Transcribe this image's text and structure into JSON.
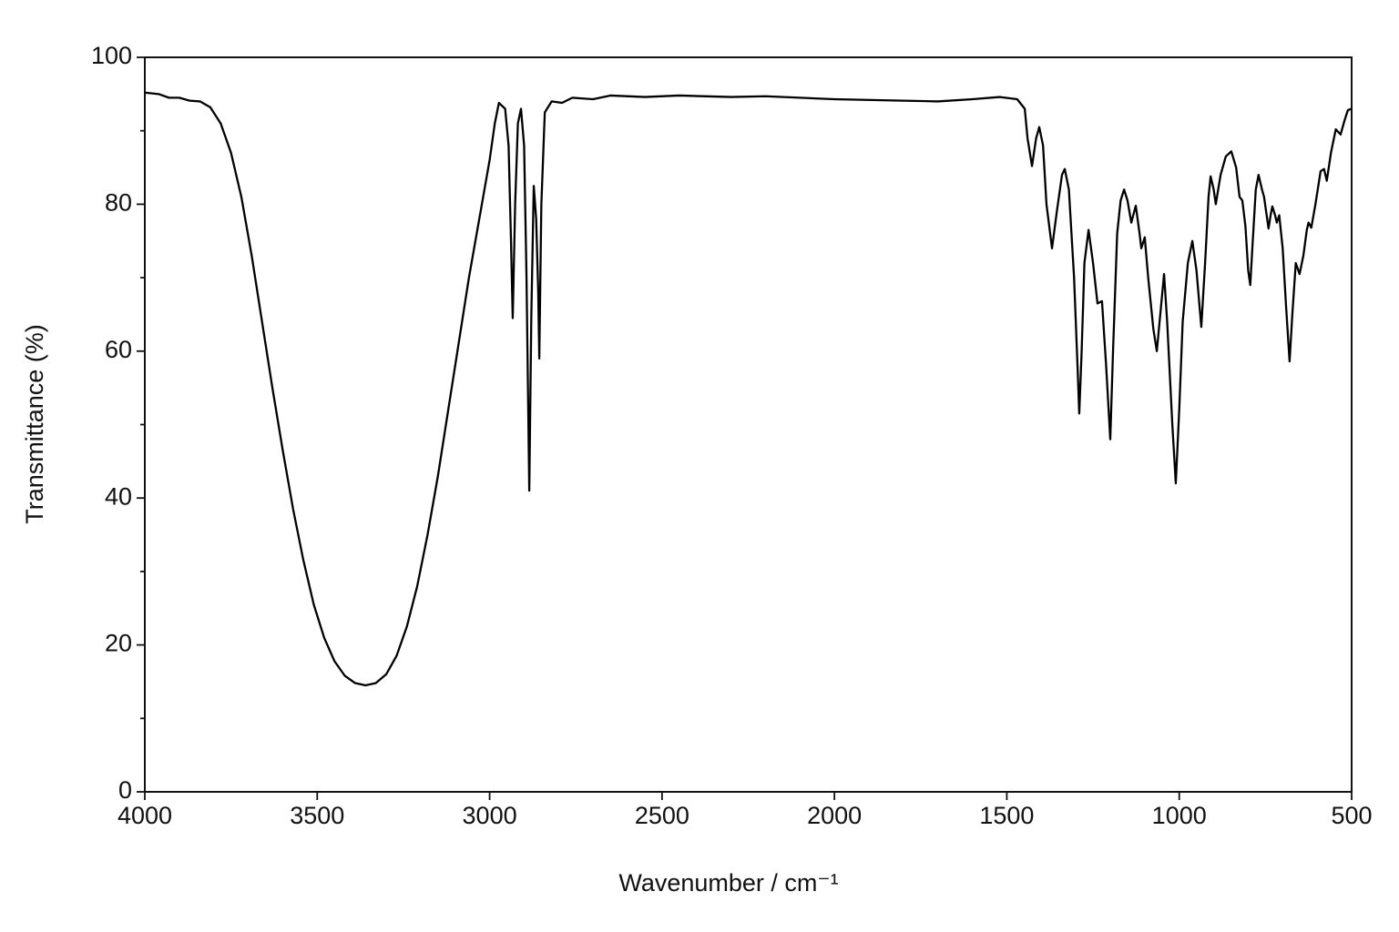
{
  "chart_data": {
    "type": "line",
    "x_label": "Wavenumber / cm⁻¹",
    "y_label": "Transmittance (%)",
    "color": "#000000",
    "xlim": [
      4000,
      500
    ],
    "xticks": [
      4000,
      3500,
      3000,
      2500,
      2000,
      1500,
      1000,
      500
    ],
    "ylim": [
      0,
      100
    ],
    "yticks": [
      0,
      20,
      40,
      60,
      80,
      100
    ],
    "y_minor_ticks": [
      10,
      30,
      50,
      70,
      90
    ],
    "x": [
      4000,
      3960,
      3930,
      3900,
      3870,
      3840,
      3810,
      3780,
      3750,
      3720,
      3690,
      3660,
      3630,
      3600,
      3570,
      3540,
      3510,
      3480,
      3450,
      3420,
      3390,
      3360,
      3330,
      3300,
      3270,
      3240,
      3210,
      3180,
      3150,
      3120,
      3090,
      3060,
      3030,
      3000,
      2985,
      2973,
      2955,
      2945,
      2938,
      2933,
      2926,
      2918,
      2909,
      2900,
      2893,
      2885,
      2879,
      2872,
      2865,
      2859,
      2856,
      2850,
      2840,
      2820,
      2790,
      2760,
      2700,
      2650,
      2550,
      2450,
      2300,
      2200,
      2000,
      1800,
      1700,
      1600,
      1520,
      1470,
      1448,
      1440,
      1427,
      1415,
      1406,
      1395,
      1385,
      1369,
      1355,
      1340,
      1332,
      1320,
      1305,
      1295,
      1290,
      1283,
      1275,
      1263,
      1250,
      1237,
      1224,
      1212,
      1200,
      1192,
      1180,
      1170,
      1160,
      1150,
      1139,
      1126,
      1115,
      1110,
      1100,
      1090,
      1075,
      1065,
      1055,
      1044,
      1035,
      1020,
      1010,
      1000,
      990,
      975,
      962,
      950,
      936,
      925,
      915,
      909,
      900,
      894,
      880,
      865,
      849,
      835,
      825,
      817,
      808,
      800,
      794,
      788,
      778,
      770,
      760,
      754,
      748,
      741,
      735,
      730,
      722,
      717,
      710,
      700,
      690,
      680,
      672,
      662,
      651,
      640,
      630,
      625,
      617,
      605,
      590,
      580,
      572,
      560,
      546,
      532,
      520,
      511,
      500
    ],
    "values": [
      95.2,
      95.0,
      94.5,
      94.5,
      94.1,
      94.0,
      93.2,
      91,
      87,
      81,
      73,
      64,
      55,
      46.5,
      38.5,
      31.5,
      25.5,
      21,
      17.8,
      15.8,
      14.8,
      14.5,
      14.8,
      16,
      18.5,
      22.5,
      28,
      35,
      43,
      52,
      61,
      70,
      78,
      86,
      91,
      93.8,
      93,
      88,
      75,
      64.5,
      80,
      91,
      93,
      88,
      70,
      41,
      65,
      82.5,
      78,
      68,
      59,
      80,
      92.5,
      94,
      93.8,
      94.5,
      94.3,
      94.8,
      94.6,
      94.8,
      94.6,
      94.7,
      94.3,
      94.1,
      94.0,
      94.3,
      94.6,
      94.3,
      93,
      89,
      85.2,
      89,
      90.5,
      88,
      80,
      74,
      79,
      84,
      84.8,
      82,
      70,
      58,
      51.5,
      60,
      72,
      76.5,
      72,
      66.5,
      66.8,
      58,
      48,
      60,
      76,
      80.5,
      82,
      80.5,
      77.5,
      79.8,
      76,
      74,
      75.5,
      70,
      63,
      60,
      65,
      70.5,
      64,
      50,
      42,
      52,
      64,
      72,
      75,
      71,
      63.3,
      72,
      81,
      83.8,
      82,
      80,
      84,
      86.5,
      87.2,
      85,
      81,
      80.5,
      77,
      71,
      69,
      74,
      82,
      84,
      82,
      81,
      79,
      76.7,
      78.5,
      79.7,
      78.5,
      77.5,
      78.5,
      74,
      66,
      58.6,
      65,
      72,
      70.5,
      73,
      76.5,
      77.5,
      76.8,
      80,
      84.5,
      84.8,
      83.2,
      87,
      90.2,
      89.5,
      91.5,
      92.8,
      93
    ]
  }
}
